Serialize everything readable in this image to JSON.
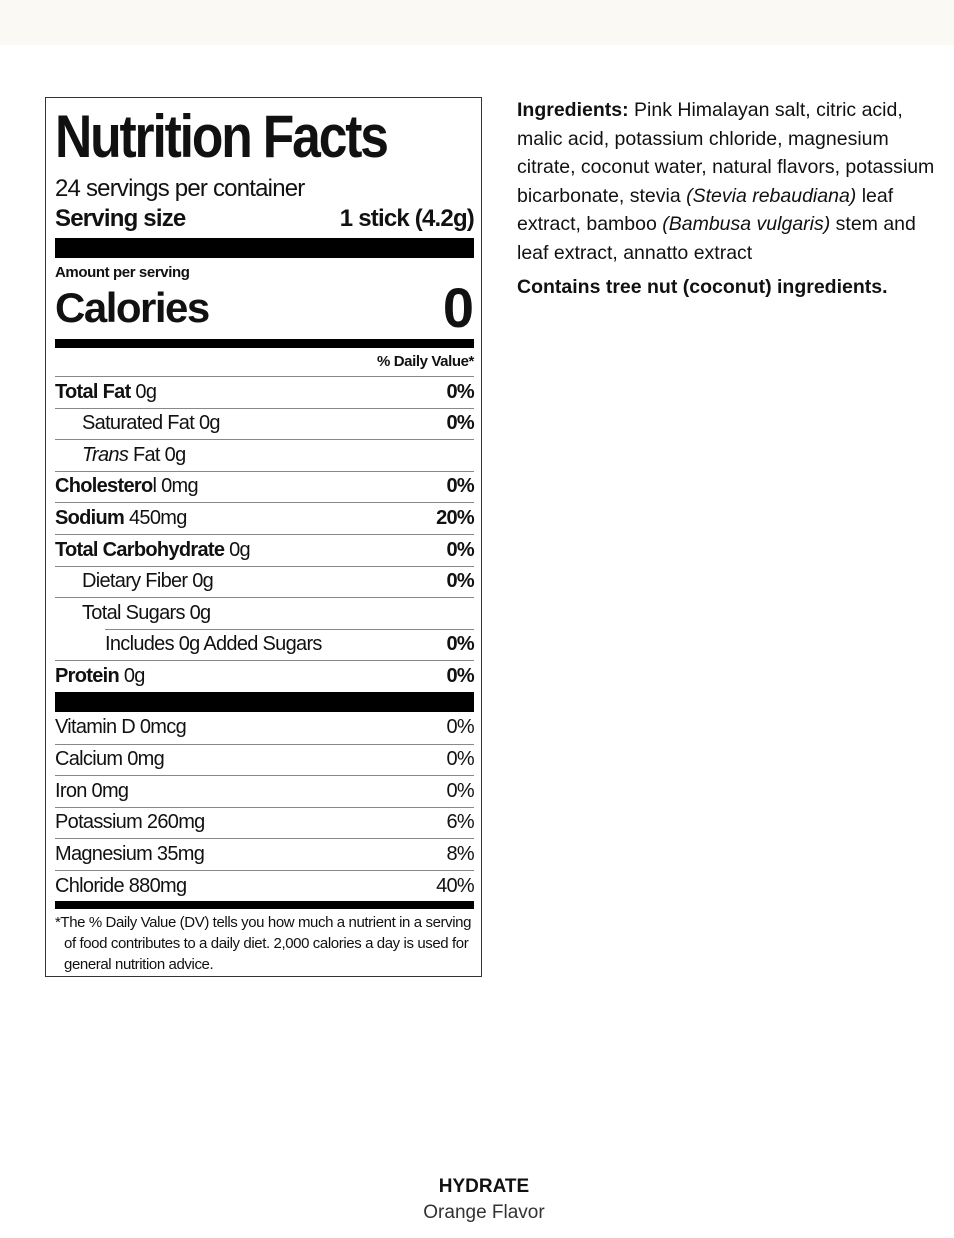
{
  "label": {
    "title": "Nutrition Facts",
    "servings": "24 servings per container",
    "serving_size_label": "Serving size",
    "serving_size_value": "1 stick (4.2g)",
    "amount_per_serving": "Amount per serving",
    "calories_label": "Calories",
    "calories_value": "0",
    "dv_header": "% Daily Value*",
    "nutrients": [
      {
        "bold": "Total Fat",
        "italic": "",
        "text": " 0g",
        "dv": "0%",
        "indent": 0
      },
      {
        "bold": "",
        "italic": "",
        "text": "Saturated Fat 0g",
        "dv": "0%",
        "indent": 1
      },
      {
        "bold": "",
        "italic": "Trans",
        "text": " Fat 0g",
        "dv": "",
        "indent": 1
      },
      {
        "bold": "Cholestero",
        "italic": "",
        "text": "l 0mg",
        "dv": "0%",
        "indent": 0
      },
      {
        "bold": "Sodium",
        "italic": "",
        "text": " 450mg",
        "dv": "20%",
        "indent": 0
      },
      {
        "bold": "Total Carbohydrate",
        "italic": "",
        "text": " 0g",
        "dv": "0%",
        "indent": 0
      },
      {
        "bold": "",
        "italic": "",
        "text": "Dietary Fiber 0g",
        "dv": "0%",
        "indent": 1
      },
      {
        "bold": "",
        "italic": "",
        "text": "Total Sugars 0g",
        "dv": "",
        "indent": 1
      },
      {
        "bold": "",
        "italic": "",
        "text": "Includes 0g Added Sugars",
        "dv": "0%",
        "indent": 2
      },
      {
        "bold": "Protein",
        "italic": "",
        "text": " 0g",
        "dv": "0%",
        "indent": 0
      }
    ],
    "vitamins": [
      {
        "text": "Vitamin D 0mcg",
        "dv": "0%"
      },
      {
        "text": "Calcium 0mg",
        "dv": "0%"
      },
      {
        "text": "Iron 0mg",
        "dv": "0%"
      },
      {
        "text": "Potassium 260mg",
        "dv": "6%"
      },
      {
        "text": "Magnesium 35mg",
        "dv": "8%"
      },
      {
        "text": "Chloride 880mg",
        "dv": "40%"
      }
    ],
    "footnote": "*The % Daily Value (DV) tells you how much a nutrient in a serving of food contributes to a daily diet. 2,000 calories a day is used for general nutrition advice."
  },
  "ingredients": {
    "label": "Ingredients:",
    "parts": [
      {
        "t": " Pink Himalayan salt, citric acid, malic acid, potassium chloride, magnesium citrate, coconut water, natural flavors, potassium bicarbonate, stevia ",
        "i": false
      },
      {
        "t": "(Stevia rebaudiana)",
        "i": true
      },
      {
        "t": " leaf extract, bamboo ",
        "i": false
      },
      {
        "t": "(Bambusa vulgaris)",
        "i": true
      },
      {
        "t": " stem and leaf extract, annatto extract",
        "i": false
      }
    ],
    "allergen": "Contains tree nut (coconut) ingredients."
  },
  "product": {
    "name": "HYDRATE",
    "flavor": "Orange Flavor"
  }
}
